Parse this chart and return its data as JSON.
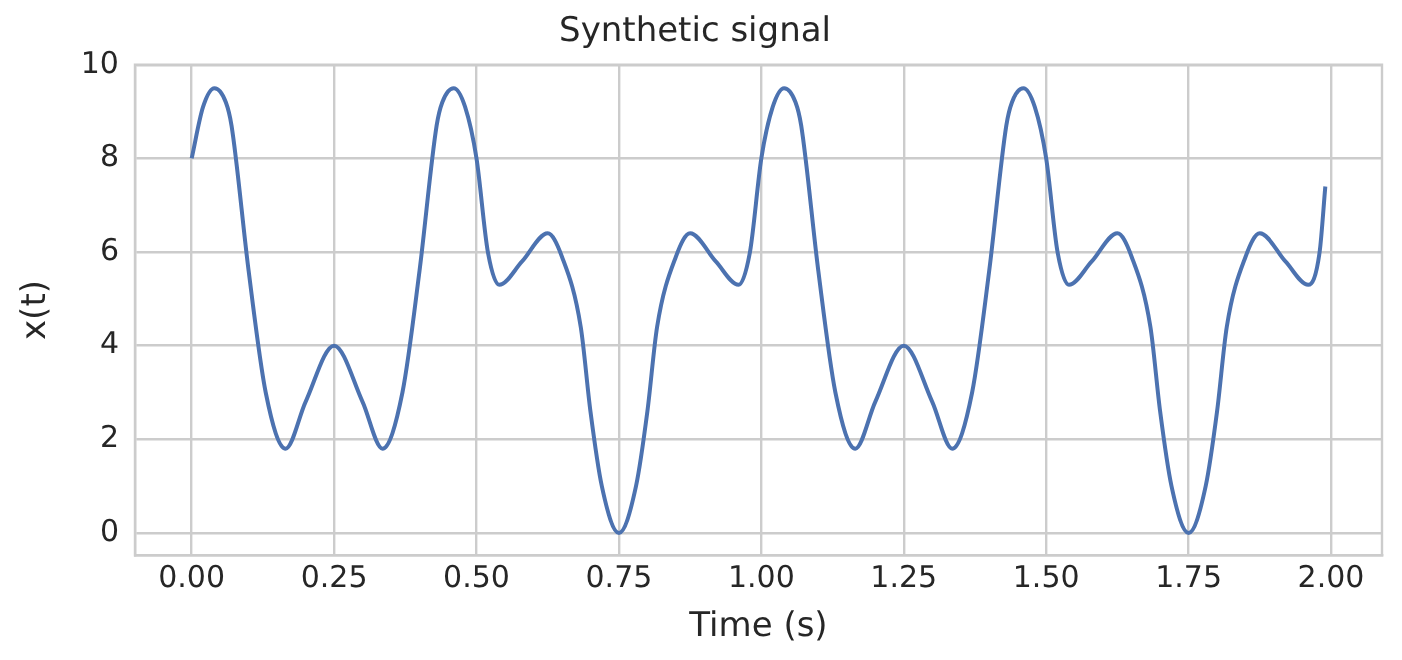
{
  "chart_data": {
    "type": "line",
    "title": "Synthetic signal",
    "xlabel": "Time (s)",
    "ylabel": "x(t)",
    "x": [
      0,
      0.02,
      0.04,
      0.06,
      0.07,
      0.1,
      0.13,
      0.165,
      0.2,
      0.25,
      0.3,
      0.335,
      0.37,
      0.4,
      0.43,
      0.44,
      0.46,
      0.48,
      0.5,
      0.52,
      0.54,
      0.58,
      0.625,
      0.65,
      0.683,
      0.7,
      0.72,
      0.75,
      0.78,
      0.8,
      0.817,
      0.85,
      0.875,
      0.92,
      0.96,
      0.98,
      1,
      1.02,
      1.04,
      1.06,
      1.07,
      1.1,
      1.13,
      1.165,
      1.2,
      1.25,
      1.3,
      1.335,
      1.37,
      1.4,
      1.43,
      1.44,
      1.46,
      1.48,
      1.5,
      1.52,
      1.54,
      1.58,
      1.625,
      1.65,
      1.683,
      1.7,
      1.72,
      1.75,
      1.78,
      1.8,
      1.817,
      1.85,
      1.875,
      1.92,
      1.96,
      1.98,
      1.99
    ],
    "series": [
      {
        "color": "#4c72b0",
        "values": [
          8.0,
          9.1,
          9.5,
          9.2,
          8.7,
          5.6,
          3.0,
          1.8,
          2.8,
          4.0,
          2.8,
          1.8,
          3.0,
          5.6,
          8.7,
          9.2,
          9.5,
          9.1,
          8.0,
          6.0,
          5.3,
          5.8,
          6.4,
          5.9,
          4.4,
          2.6,
          1.0,
          0.0,
          1.0,
          2.6,
          4.4,
          5.9,
          6.4,
          5.8,
          5.3,
          6.0,
          8.0,
          9.1,
          9.5,
          9.2,
          8.7,
          5.6,
          3.0,
          1.8,
          2.8,
          4.0,
          2.8,
          1.8,
          3.0,
          5.6,
          8.7,
          9.2,
          9.5,
          9.1,
          8.0,
          6.0,
          5.3,
          5.8,
          6.4,
          5.9,
          4.4,
          2.6,
          1.0,
          0.0,
          1.0,
          2.6,
          4.4,
          5.9,
          6.4,
          5.8,
          5.3,
          6.0,
          7.4
        ]
      }
    ],
    "xlim": [
      -0.0995,
      2.0895
    ],
    "xticks": [
      {
        "value": 0,
        "label": "0.00"
      },
      {
        "value": 0.25,
        "label": "0.25"
      },
      {
        "value": 0.5,
        "label": "0.50"
      },
      {
        "value": 0.75,
        "label": "0.75"
      },
      {
        "value": 1,
        "label": "1.00"
      },
      {
        "value": 1.25,
        "label": "1.25"
      },
      {
        "value": 1.5,
        "label": "1.50"
      },
      {
        "value": 1.75,
        "label": "1.75"
      },
      {
        "value": 2,
        "label": "2.00"
      }
    ],
    "ylim": [
      -0.475,
      10
    ],
    "yticks": [
      0,
      2,
      4,
      6,
      8,
      10
    ],
    "grid": true,
    "marker": "none",
    "line_style": "solid"
  }
}
